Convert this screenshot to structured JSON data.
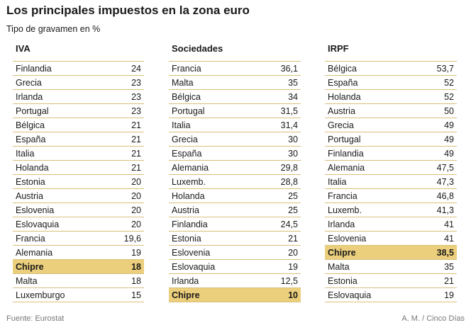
{
  "title": "Los principales impuestos en la zona euro",
  "subtitle": "Tipo de gravamen en %",
  "source": "Fuente: Eurostat",
  "credit": "A. M. / Cinco Días",
  "highlight_color": "#ebcf7c",
  "rule_color": "#d7c07a",
  "chart_data": {
    "type": "table",
    "title": "Los principales impuestos en la zona euro",
    "subtitle": "Tipo de gravamen en %",
    "tables": [
      {
        "name": "IVA",
        "rows": [
          {
            "country": "Finlandia",
            "value": "24",
            "highlight": false
          },
          {
            "country": "Grecia",
            "value": "23",
            "highlight": false
          },
          {
            "country": "Irlanda",
            "value": "23",
            "highlight": false
          },
          {
            "country": "Portugal",
            "value": "23",
            "highlight": false
          },
          {
            "country": "Bélgica",
            "value": "21",
            "highlight": false
          },
          {
            "country": "España",
            "value": "21",
            "highlight": false
          },
          {
            "country": "Italia",
            "value": "21",
            "highlight": false
          },
          {
            "country": "Holanda",
            "value": "21",
            "highlight": false
          },
          {
            "country": "Estonia",
            "value": "20",
            "highlight": false
          },
          {
            "country": "Austria",
            "value": "20",
            "highlight": false
          },
          {
            "country": "Eslovenia",
            "value": "20",
            "highlight": false
          },
          {
            "country": "Eslovaquia",
            "value": "20",
            "highlight": false
          },
          {
            "country": "Francia",
            "value": "19,6",
            "highlight": false
          },
          {
            "country": "Alemania",
            "value": "19",
            "highlight": false
          },
          {
            "country": "Chipre",
            "value": "18",
            "highlight": true
          },
          {
            "country": "Malta",
            "value": "18",
            "highlight": false
          },
          {
            "country": "Luxemburgo",
            "value": "15",
            "highlight": false
          }
        ]
      },
      {
        "name": "Sociedades",
        "rows": [
          {
            "country": "Francia",
            "value": "36,1",
            "highlight": false
          },
          {
            "country": "Malta",
            "value": "35",
            "highlight": false
          },
          {
            "country": "Bélgica",
            "value": "34",
            "highlight": false
          },
          {
            "country": "Portugal",
            "value": "31,5",
            "highlight": false
          },
          {
            "country": "Italia",
            "value": "31,4",
            "highlight": false
          },
          {
            "country": "Grecia",
            "value": "30",
            "highlight": false
          },
          {
            "country": "España",
            "value": "30",
            "highlight": false
          },
          {
            "country": "Alemania",
            "value": "29,8",
            "highlight": false
          },
          {
            "country": "Luxemb.",
            "value": "28,8",
            "highlight": false
          },
          {
            "country": "Holanda",
            "value": "25",
            "highlight": false
          },
          {
            "country": "Austria",
            "value": "25",
            "highlight": false
          },
          {
            "country": "Finlandia",
            "value": "24,5",
            "highlight": false
          },
          {
            "country": "Estonia",
            "value": "21",
            "highlight": false
          },
          {
            "country": "Eslovenia",
            "value": "20",
            "highlight": false
          },
          {
            "country": "Eslovaquia",
            "value": "19",
            "highlight": false
          },
          {
            "country": "Irlanda",
            "value": "12,5",
            "highlight": false
          },
          {
            "country": "Chipre",
            "value": "10",
            "highlight": true
          }
        ]
      },
      {
        "name": "IRPF",
        "rows": [
          {
            "country": "Bélgica",
            "value": "53,7",
            "highlight": false
          },
          {
            "country": "España",
            "value": "52",
            "highlight": false
          },
          {
            "country": "Holanda",
            "value": "52",
            "highlight": false
          },
          {
            "country": "Austria",
            "value": "50",
            "highlight": false
          },
          {
            "country": "Grecia",
            "value": "49",
            "highlight": false
          },
          {
            "country": "Portugal",
            "value": "49",
            "highlight": false
          },
          {
            "country": "Finlandia",
            "value": "49",
            "highlight": false
          },
          {
            "country": "Alemania",
            "value": "47,5",
            "highlight": false
          },
          {
            "country": "Italia",
            "value": "47,3",
            "highlight": false
          },
          {
            "country": "Francia",
            "value": "46,8",
            "highlight": false
          },
          {
            "country": "Luxemb.",
            "value": "41,3",
            "highlight": false
          },
          {
            "country": "Irlanda",
            "value": "41",
            "highlight": false
          },
          {
            "country": "Eslovenia",
            "value": "41",
            "highlight": false
          },
          {
            "country": "Chipre",
            "value": "38,5",
            "highlight": true
          },
          {
            "country": "Malta",
            "value": "35",
            "highlight": false
          },
          {
            "country": "Estonia",
            "value": "21",
            "highlight": false
          },
          {
            "country": "Eslovaquia",
            "value": "19",
            "highlight": false
          }
        ]
      }
    ]
  }
}
